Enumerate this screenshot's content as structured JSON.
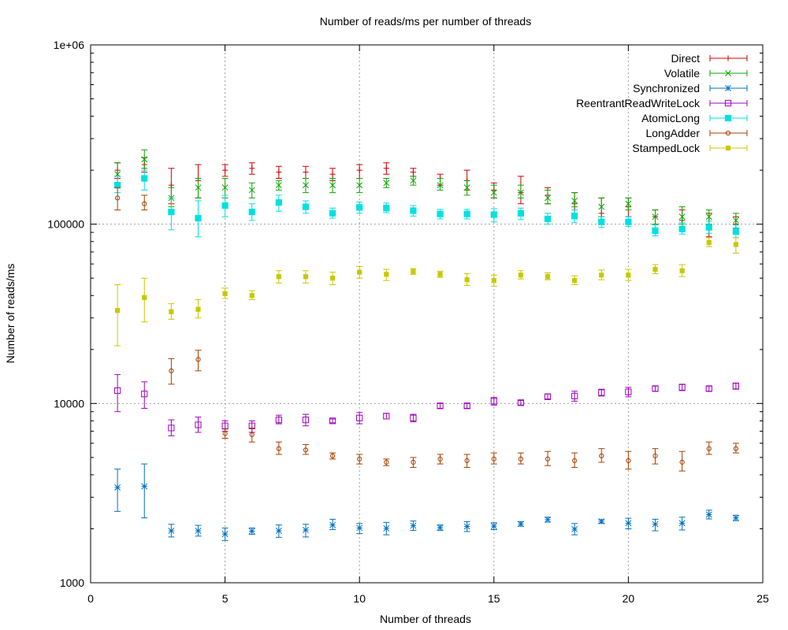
{
  "chart_data": {
    "type": "scatter",
    "title": "Number of reads/ms per number of threads",
    "xlabel": "Number of threads",
    "ylabel": "Number of reads/ms",
    "xlim": [
      0,
      25
    ],
    "ylim": [
      1000,
      1000000
    ],
    "y_scale": "log",
    "x_ticks": [
      0,
      5,
      10,
      15,
      20,
      25
    ],
    "x_tick_labels": [
      "0",
      "5",
      "10",
      "15",
      "20",
      "25"
    ],
    "y_ticks": [
      1000,
      10000,
      100000,
      1000000
    ],
    "y_tick_labels": [
      "1000",
      "10000",
      "100000",
      "1e+06"
    ],
    "grid": true,
    "legend_position": "top-right",
    "error_bars": true,
    "series": [
      {
        "name": "Direct",
        "color": "#d40000",
        "marker": "plus",
        "x": [
          1,
          2,
          3,
          4,
          5,
          6,
          7,
          8,
          9,
          10,
          11,
          12,
          13,
          14,
          15,
          16,
          17,
          18,
          19,
          20,
          21,
          22,
          23,
          24
        ],
        "y": [
          200000,
          215000,
          165000,
          175000,
          200000,
          205000,
          195000,
          195000,
          190000,
          200000,
          205000,
          195000,
          180000,
          175000,
          155000,
          150000,
          145000,
          130000,
          115000,
          125000,
          110000,
          105000,
          95000,
          100000
        ],
        "err_low": [
          180000,
          195000,
          130000,
          140000,
          185000,
          190000,
          180000,
          180000,
          175000,
          180000,
          190000,
          185000,
          165000,
          155000,
          140000,
          130000,
          130000,
          115000,
          105000,
          110000,
          100000,
          95000,
          85000,
          90000
        ],
        "err_high": [
          220000,
          235000,
          205000,
          215000,
          215000,
          220000,
          210000,
          210000,
          205000,
          215000,
          220000,
          205000,
          190000,
          200000,
          170000,
          185000,
          160000,
          150000,
          140000,
          140000,
          120000,
          120000,
          115000,
          110000
        ]
      },
      {
        "name": "Volatile",
        "color": "#0aa600",
        "marker": "cross",
        "x": [
          1,
          2,
          3,
          4,
          5,
          6,
          7,
          8,
          9,
          10,
          11,
          12,
          13,
          14,
          15,
          16,
          17,
          18,
          19,
          20,
          21,
          22,
          23,
          24
        ],
        "y": [
          190000,
          230000,
          140000,
          160000,
          160000,
          155000,
          165000,
          165000,
          165000,
          165000,
          170000,
          175000,
          165000,
          160000,
          150000,
          150000,
          140000,
          135000,
          125000,
          130000,
          110000,
          110000,
          110000,
          105000
        ],
        "err_low": [
          160000,
          205000,
          125000,
          140000,
          140000,
          140000,
          155000,
          150000,
          150000,
          150000,
          160000,
          165000,
          155000,
          145000,
          140000,
          140000,
          130000,
          125000,
          110000,
          120000,
          100000,
          100000,
          100000,
          95000
        ],
        "err_high": [
          220000,
          260000,
          160000,
          180000,
          180000,
          170000,
          175000,
          180000,
          180000,
          180000,
          180000,
          185000,
          180000,
          175000,
          165000,
          165000,
          155000,
          150000,
          140000,
          140000,
          120000,
          125000,
          120000,
          115000
        ]
      },
      {
        "name": "Synchronized",
        "color": "#0072c6",
        "marker": "asterisk",
        "x": [
          1,
          2,
          3,
          4,
          5,
          6,
          7,
          8,
          9,
          10,
          11,
          12,
          13,
          14,
          15,
          16,
          17,
          18,
          19,
          20,
          21,
          22,
          23,
          24
        ],
        "y": [
          3400,
          3450,
          1950,
          1950,
          1870,
          1940,
          1950,
          1970,
          2100,
          2020,
          2010,
          2080,
          2030,
          2060,
          2070,
          2130,
          2250,
          1990,
          2200,
          2150,
          2120,
          2150,
          2400,
          2300
        ],
        "err_low": [
          2500,
          2300,
          1800,
          1820,
          1720,
          1860,
          1790,
          1800,
          1980,
          1880,
          1850,
          1960,
          1960,
          1930,
          1980,
          2070,
          2180,
          1850,
          2150,
          2000,
          1950,
          1970,
          2270,
          2220
        ],
        "err_high": [
          4300,
          4600,
          2120,
          2090,
          2020,
          2020,
          2100,
          2120,
          2260,
          2140,
          2170,
          2210,
          2100,
          2190,
          2160,
          2190,
          2320,
          2140,
          2250,
          2290,
          2260,
          2320,
          2540,
          2380
        ]
      },
      {
        "name": "ReentrantReadWriteLock",
        "color": "#a000c0",
        "marker": "open-square",
        "x": [
          1,
          2,
          3,
          4,
          5,
          6,
          7,
          8,
          9,
          10,
          11,
          12,
          13,
          14,
          15,
          16,
          17,
          18,
          19,
          20,
          21,
          22,
          23,
          24
        ],
        "y": [
          11800,
          11300,
          7300,
          7600,
          7500,
          7500,
          8100,
          8100,
          8000,
          8300,
          8500,
          8300,
          9700,
          9700,
          10300,
          10100,
          10900,
          11000,
          11500,
          11600,
          12100,
          12300,
          12100,
          12500
        ],
        "err_low": [
          9000,
          9400,
          6600,
          6900,
          7000,
          6900,
          7700,
          7500,
          7800,
          7700,
          8200,
          7900,
          9400,
          9400,
          9800,
          9800,
          10600,
          10300,
          11000,
          10900,
          11700,
          11800,
          11700,
          12000
        ],
        "err_high": [
          14500,
          13200,
          8100,
          8400,
          8000,
          8000,
          8600,
          8700,
          8200,
          8900,
          8800,
          8700,
          10000,
          10000,
          10800,
          10400,
          11300,
          11700,
          12000,
          12300,
          12500,
          12800,
          12500,
          13000
        ]
      },
      {
        "name": "AtomicLong",
        "color": "#00e0e0",
        "marker": "filled-square",
        "x": [
          1,
          2,
          3,
          4,
          5,
          6,
          7,
          8,
          9,
          10,
          11,
          12,
          13,
          14,
          15,
          16,
          17,
          18,
          19,
          20,
          21,
          22,
          23,
          24
        ],
        "y": [
          165000,
          180000,
          117000,
          108000,
          127000,
          117000,
          132000,
          125000,
          115000,
          124000,
          123000,
          119000,
          114000,
          114000,
          113000,
          115000,
          107000,
          111000,
          103000,
          103000,
          92000,
          94000,
          96000,
          91000
        ],
        "err_low": [
          150000,
          155000,
          93000,
          85000,
          110000,
          105000,
          118000,
          115000,
          108000,
          115000,
          116000,
          111000,
          107000,
          107000,
          103000,
          106000,
          100000,
          102000,
          96000,
          97000,
          86000,
          88000,
          89000,
          84000
        ],
        "err_high": [
          185000,
          200000,
          140000,
          135000,
          145000,
          130000,
          145000,
          135000,
          123000,
          133000,
          131000,
          127000,
          121000,
          121000,
          122000,
          123000,
          115000,
          120000,
          110000,
          110000,
          99000,
          102000,
          104000,
          99000
        ]
      },
      {
        "name": "LongAdder",
        "color": "#a84000",
        "marker": "open-circle",
        "x": [
          1,
          2,
          3,
          4,
          5,
          6,
          7,
          8,
          9,
          10,
          11,
          12,
          13,
          14,
          15,
          16,
          17,
          18,
          19,
          20,
          21,
          22,
          23,
          24
        ],
        "y": [
          140000,
          130000,
          15200,
          17600,
          6800,
          6700,
          5600,
          5500,
          5100,
          4900,
          4700,
          4700,
          4900,
          4800,
          4900,
          4900,
          4900,
          4800,
          5100,
          4800,
          5100,
          4700,
          5600,
          5600
        ],
        "err_low": [
          120000,
          120000,
          12800,
          15200,
          6400,
          6100,
          5200,
          5200,
          4900,
          4600,
          4500,
          4400,
          4600,
          4400,
          4600,
          4600,
          4500,
          4400,
          4700,
          4300,
          4600,
          4200,
          5200,
          5300
        ],
        "err_high": [
          160000,
          145000,
          17800,
          19800,
          7200,
          7300,
          6100,
          5900,
          5300,
          5200,
          4900,
          5000,
          5200,
          5200,
          5300,
          5300,
          5400,
          5300,
          5600,
          5400,
          5600,
          5400,
          6100,
          6000
        ]
      },
      {
        "name": "StampedLock",
        "color": "#c8c800",
        "marker": "filled-circle",
        "x": [
          1,
          2,
          3,
          4,
          5,
          6,
          7,
          8,
          9,
          10,
          11,
          12,
          13,
          14,
          15,
          16,
          17,
          18,
          19,
          20,
          21,
          22,
          23,
          24
        ],
        "y": [
          33000,
          39000,
          32500,
          33500,
          41000,
          40000,
          51000,
          51000,
          50000,
          54000,
          52500,
          54500,
          52500,
          49000,
          48500,
          52000,
          51000,
          48500,
          52000,
          52000,
          56000,
          55000,
          79000,
          77000
        ],
        "err_low": [
          21000,
          28500,
          29500,
          30000,
          38500,
          38000,
          47000,
          47000,
          46000,
          50000,
          48500,
          52500,
          50500,
          45500,
          45000,
          49500,
          49000,
          46000,
          49000,
          48500,
          53000,
          51000,
          75000,
          69000
        ],
        "err_high": [
          46000,
          50000,
          36000,
          38000,
          44000,
          42500,
          55000,
          55000,
          54000,
          58000,
          56000,
          56500,
          54500,
          53000,
          52000,
          55000,
          53500,
          51500,
          55500,
          56000,
          59500,
          59500,
          84000,
          84000
        ]
      }
    ]
  }
}
